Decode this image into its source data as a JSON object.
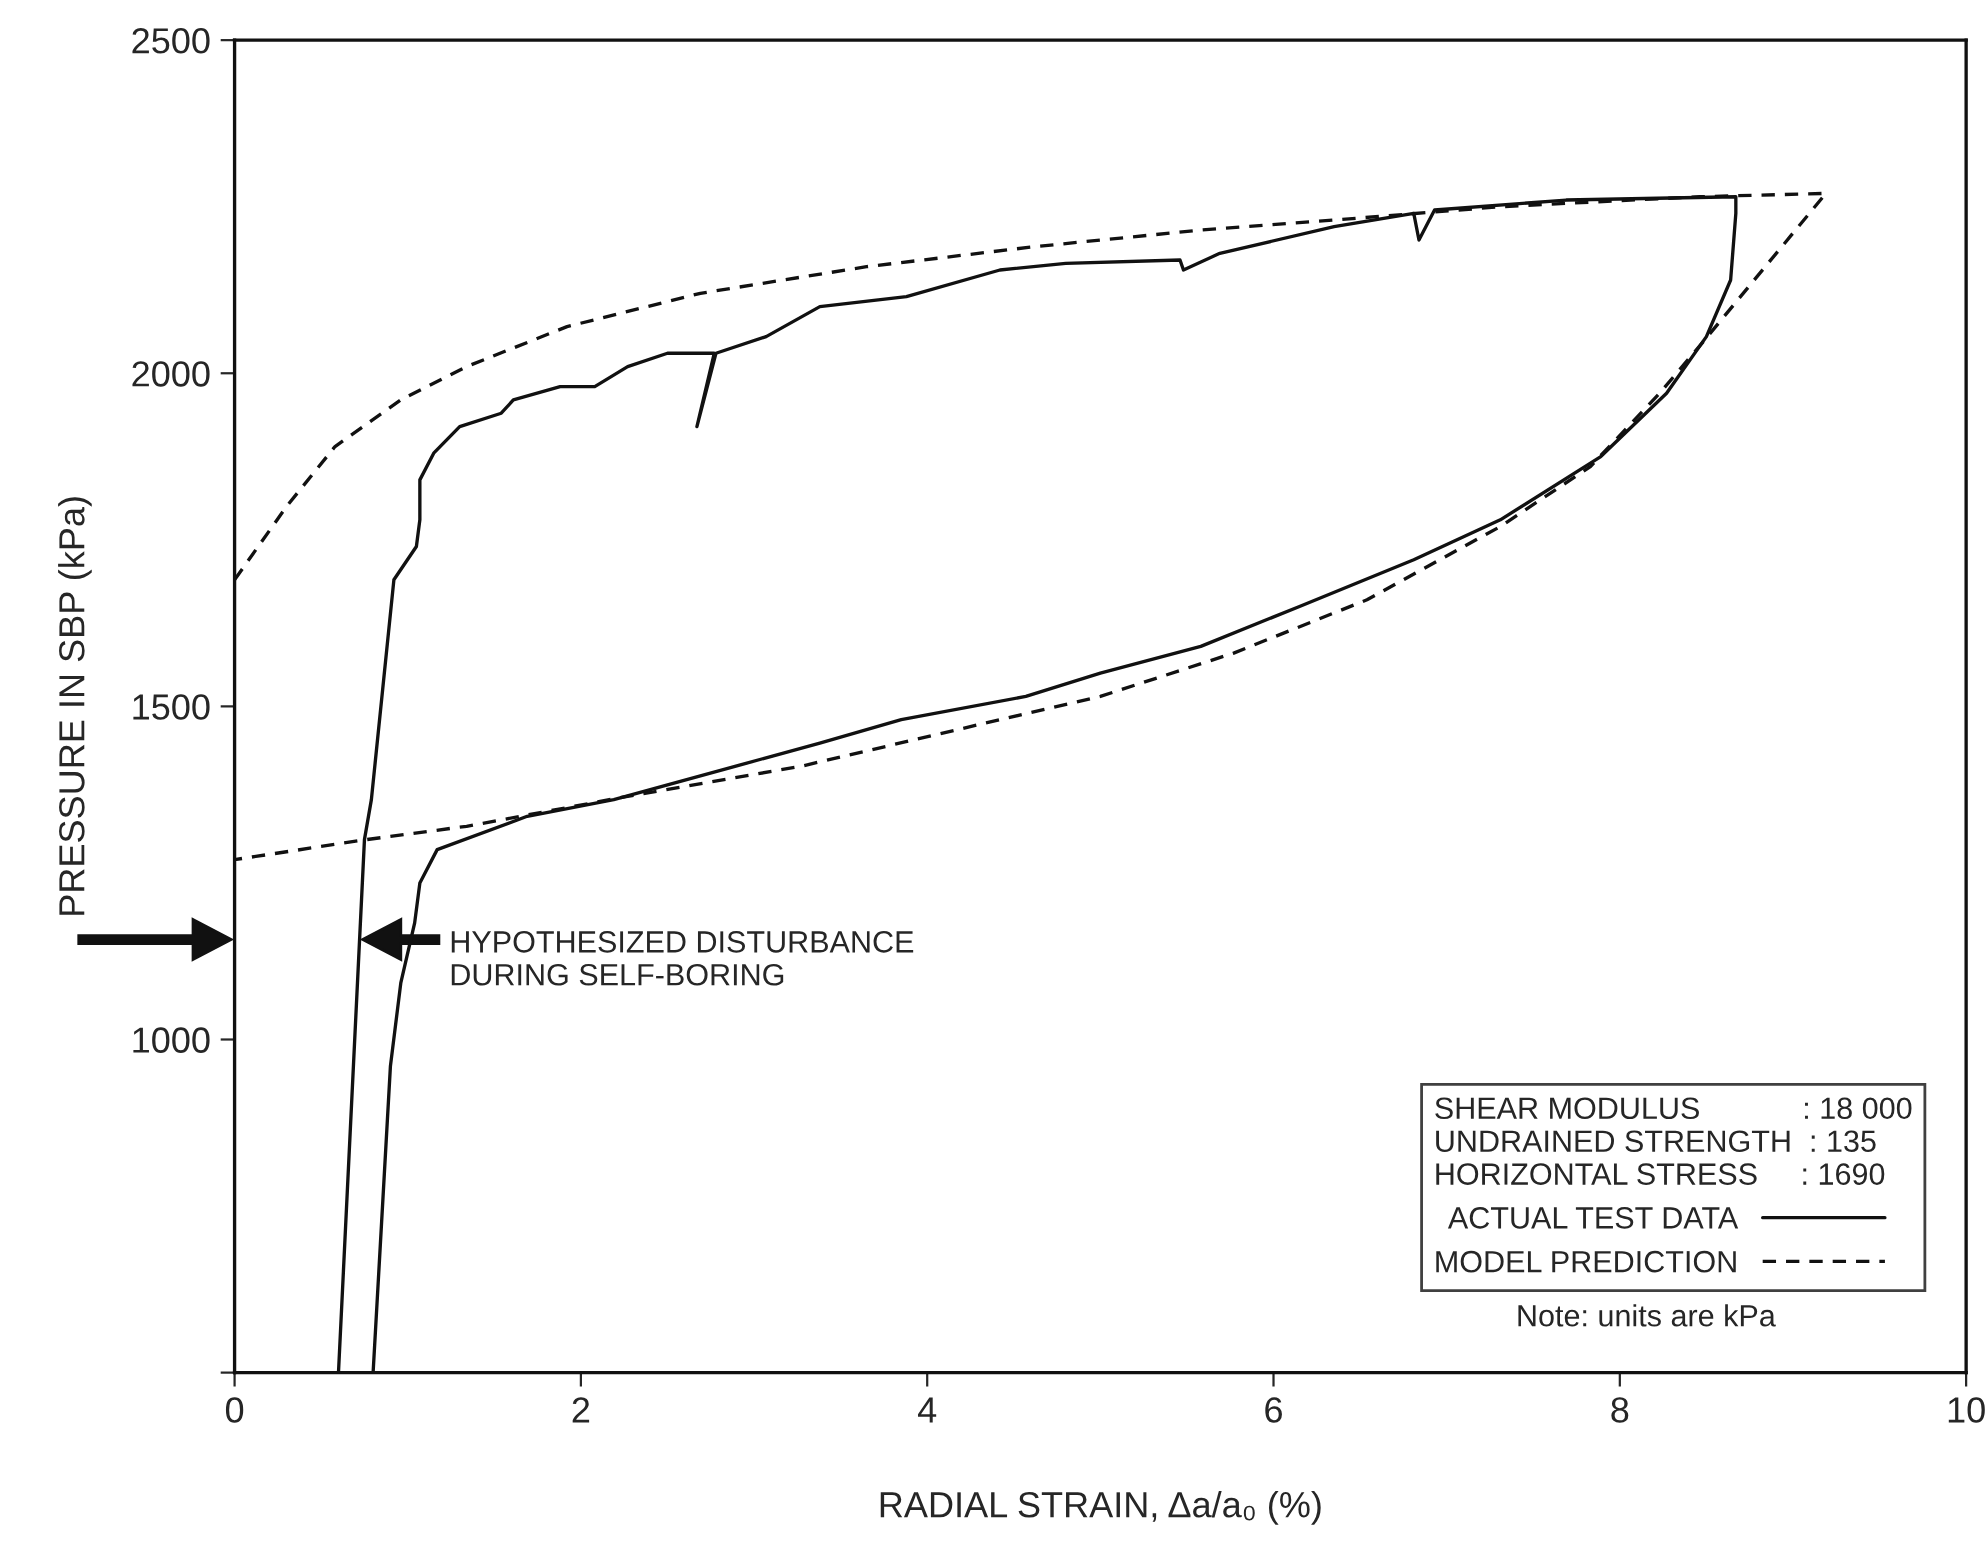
{
  "chart_data": {
    "type": "line",
    "xlabel": "RADIAL STRAIN, Δa/a₀ (%)",
    "ylabel": "PRESSURE IN SBP (kPa)",
    "legend_title": "SHEAR MODULUS            : 18 000\nUNDRAINED STRENGTH  : 135\nHORIZONTAL STRESS     : 1690",
    "legend": "bottom right",
    "grid": false,
    "xlim": [
      0,
      10
    ],
    "xticks": [
      0,
      2,
      4,
      6,
      8,
      10
    ],
    "ylim": [
      500,
      2500
    ],
    "yticks": [
      {
        "value": 500,
        "label": null
      },
      1000,
      1500,
      2000,
      2500
    ],
    "annotations": [
      "HYPOTHESIZED DISTURBANCE\nDURING SELF-BORING",
      "Note: units are kPa"
    ],
    "series": [
      {
        "name": "ACTUAL TEST DATA",
        "color": "#111111",
        "line_style": "solid",
        "x": [
          0.6,
          0.75,
          0.79,
          0.92,
          1.05,
          1.07,
          1.07,
          1.15,
          1.3,
          1.54,
          1.61,
          1.88,
          2.08,
          2.27,
          2.5,
          2.77,
          2.67,
          2.78,
          3.07,
          3.38,
          3.88,
          4.42,
          4.8,
          5.46,
          5.48,
          5.69,
          6.35,
          6.81,
          6.84,
          6.93,
          7.69,
          8.67,
          8.67,
          8.64,
          8.5,
          8.27,
          7.89,
          7.31,
          6.81,
          6.15,
          5.58,
          5.0,
          4.57,
          3.85,
          3.38,
          2.89,
          2.19,
          1.69,
          1.17,
          1.07,
          1.04,
          0.96,
          0.9,
          0.8
        ],
        "values": [
          500,
          1300,
          1360,
          1690,
          1740,
          1780,
          1840,
          1880,
          1920,
          1940,
          1960,
          1980,
          1980,
          2010,
          2030,
          2030,
          1920,
          2030,
          2055,
          2100,
          2115,
          2155,
          2165,
          2170,
          2155,
          2180,
          2220,
          2240,
          2200,
          2245,
          2260,
          2265,
          2240,
          2140,
          2055,
          1970,
          1875,
          1780,
          1720,
          1650,
          1590,
          1550,
          1515,
          1480,
          1445,
          1410,
          1360,
          1335,
          1285,
          1235,
          1175,
          1085,
          960,
          500
        ]
      },
      {
        "name": "MODEL PREDICTION",
        "color": "#111111",
        "line_style": "dashed",
        "x": [
          0.0,
          0.3,
          0.58,
          0.96,
          1.34,
          1.92,
          2.69,
          3.65,
          4.62,
          5.58,
          6.35,
          7.31,
          8.46,
          9.19,
          8.49,
          8.23,
          7.83,
          7.31,
          6.54,
          5.77,
          5.0,
          4.42,
          3.27,
          2.27,
          1.34,
          0.76,
          0.0
        ],
        "values": [
          1690,
          1800,
          1890,
          1960,
          2010,
          2070,
          2120,
          2160,
          2190,
          2215,
          2230,
          2250,
          2265,
          2270,
          2050,
          1970,
          1860,
          1770,
          1660,
          1580,
          1515,
          1480,
          1410,
          1365,
          1320,
          1300,
          1270
        ]
      }
    ]
  }
}
